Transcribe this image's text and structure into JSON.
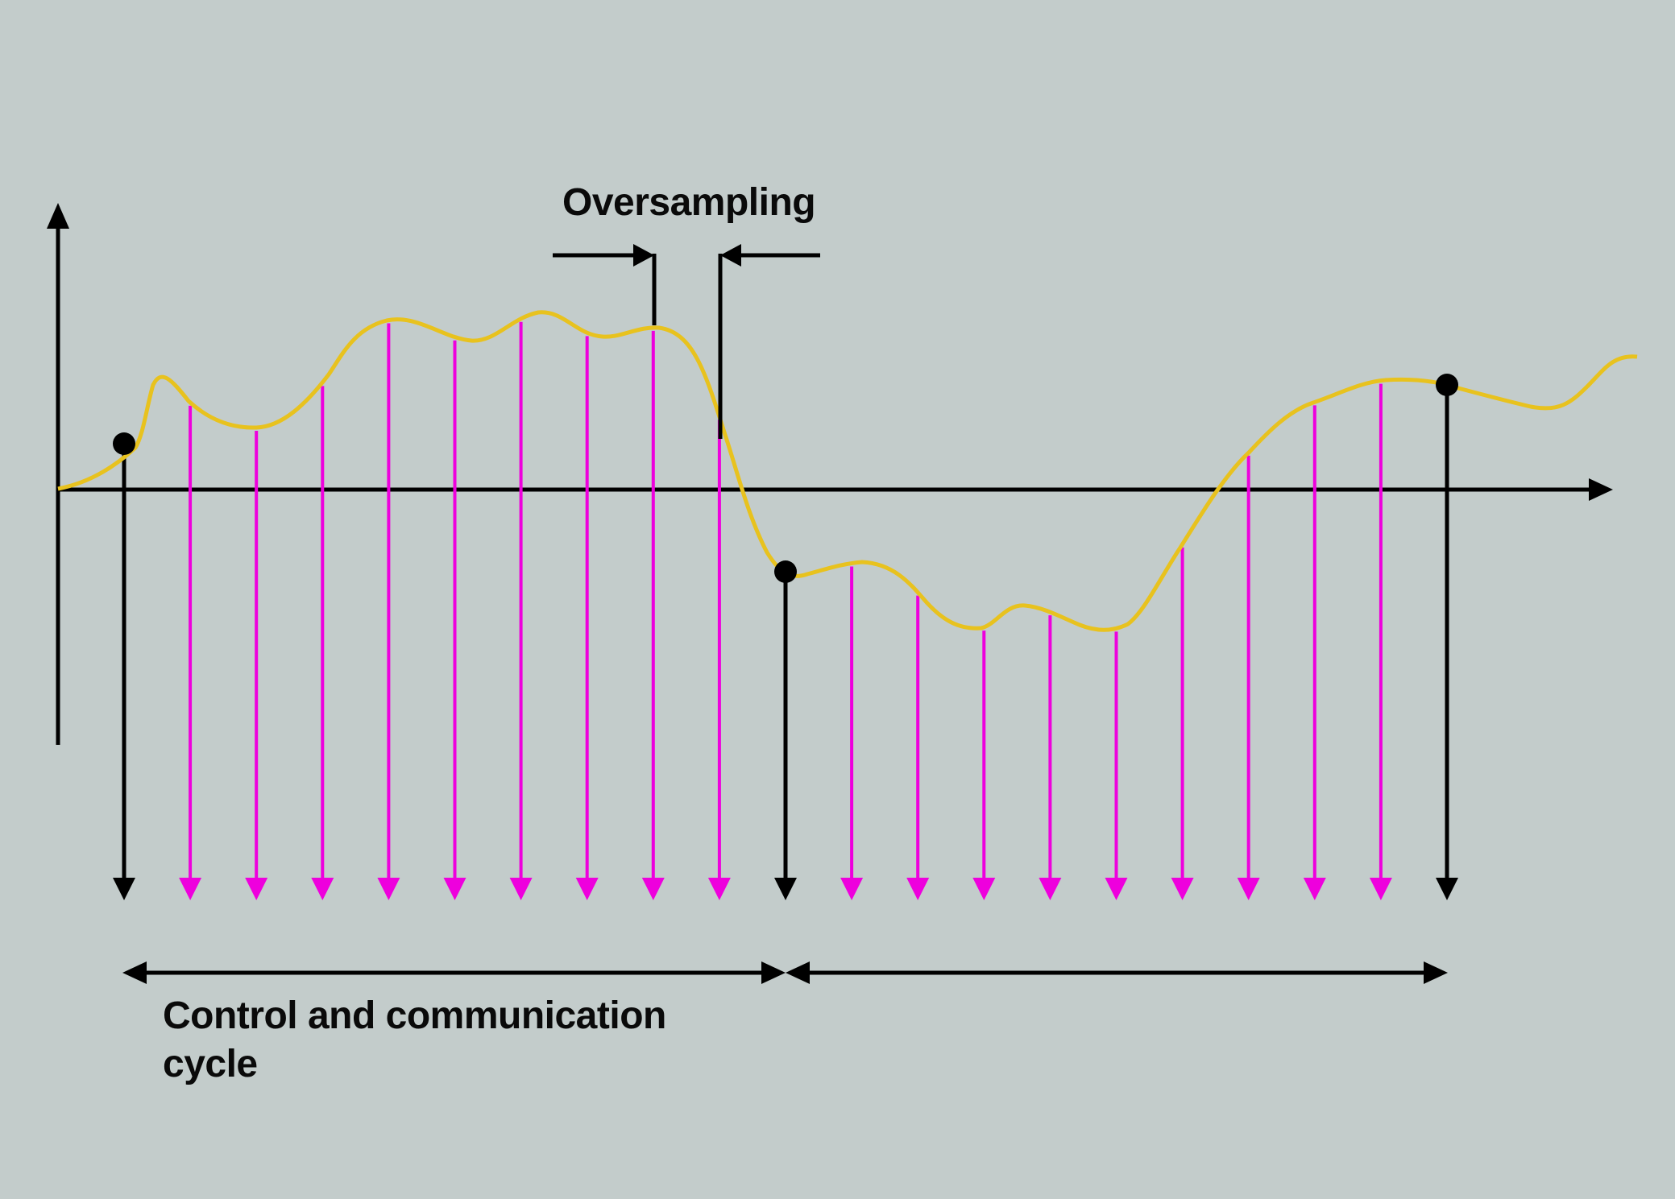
{
  "labels": {
    "oversampling": "Oversampling",
    "cycle_line1": "Control and communication",
    "cycle_line2": "cycle"
  },
  "colors": {
    "background": "#c3cccb",
    "signal": "#e8c21e",
    "oversample_arrow": "#ee00dd",
    "cycle_arrow": "#000000",
    "axis": "#000000"
  }
}
